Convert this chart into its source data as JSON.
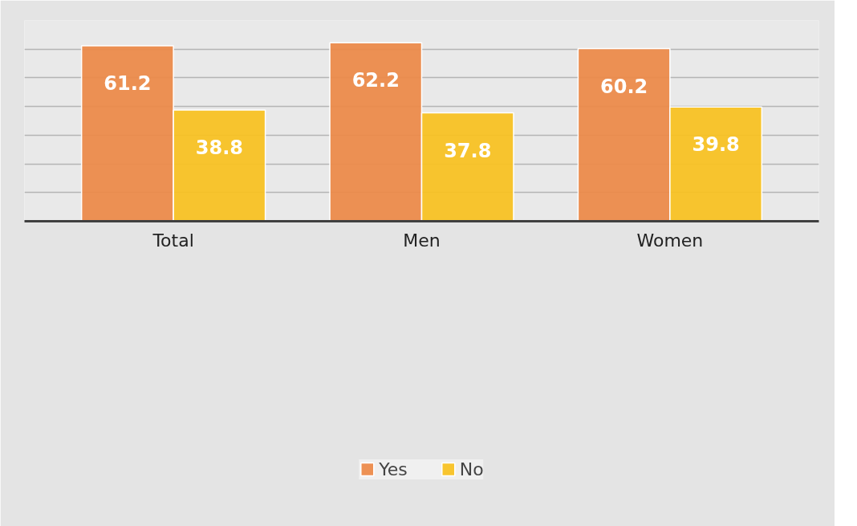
{
  "chart_data": {
    "type": "bar",
    "categories": [
      "Total",
      "Men",
      "Women"
    ],
    "series": [
      {
        "name": "Yes",
        "color": "#ec8b4b",
        "values": [
          61.2,
          62.2,
          60.2
        ]
      },
      {
        "name": "No",
        "color": "#f8c224",
        "values": [
          38.8,
          37.8,
          39.8
        ]
      }
    ],
    "ylim": [
      0,
      70
    ],
    "yticks": [
      {
        "value": 0,
        "label": null
      },
      {
        "value": 10,
        "label": null
      },
      {
        "value": 20,
        "label": null
      },
      {
        "value": 30,
        "label": null
      },
      {
        "value": 40,
        "label": null
      },
      {
        "value": 50,
        "label": null
      },
      {
        "value": 60,
        "label": null
      },
      {
        "value": 70,
        "label": null
      }
    ],
    "tick_labels": "x",
    "grid": "y",
    "legend": "bottom",
    "data_labels": true
  }
}
